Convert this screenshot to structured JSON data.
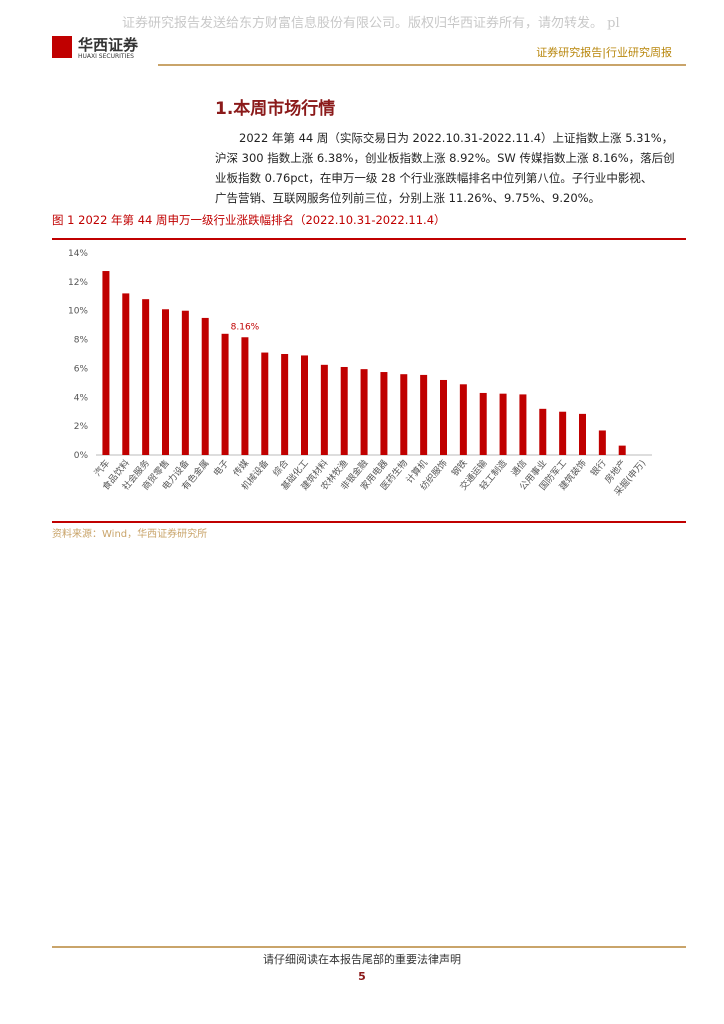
{
  "header": {
    "watermark": "证券研究报告发送给东方财富信息股份有限公司。版权归华西证券所有，请勿转发。 pl",
    "logo_name": "华西证券",
    "logo_en": "HUAXI SECURITIES",
    "report_type": "证券研究报告|行业研究周报"
  },
  "section": {
    "title": "1.本周市场行情",
    "paragraph": [
      "2022 年第 44 周（实际交易日为 2022.10.31-2022.11.4）上证指数上涨 5.31%，",
      "沪深 300 指数上涨 6.38%，创业板指数上涨 8.92%。SW 传媒指数上涨 8.16%，落后创",
      "业板指数 0.76pct，在申万一级 28 个行业涨跌幅排名中位列第八位。子行业中影视、",
      "广告营销、互联网服务位列前三位，分别上涨 11.26%、9.75%、9.20%。"
    ]
  },
  "figure": {
    "caption": "图 1  2022 年第 44 周申万一级行业涨跌幅排名（2022.10.31-2022.11.4）",
    "source": "资料来源：Wind，华西证券研究所"
  },
  "chart_data": {
    "type": "bar",
    "color": "#c00000",
    "categories": [
      "汽车",
      "食品饮料",
      "社会服务",
      "商贸零售",
      "电力设备",
      "有色金属",
      "电子",
      "传媒",
      "机械设备",
      "综合",
      "基础化工",
      "建筑材料",
      "农林牧渔",
      "非银金融",
      "家用电器",
      "医药生物",
      "计算机",
      "纺织服饰",
      "钢铁",
      "交通运输",
      "轻工制造",
      "通信",
      "公用事业",
      "国防军工",
      "建筑装饰",
      "银行",
      "房地产",
      "采掘(申万)"
    ],
    "values": [
      12.75,
      11.2,
      10.8,
      10.1,
      10.0,
      9.5,
      8.4,
      8.16,
      7.1,
      7.0,
      6.9,
      6.25,
      6.1,
      5.95,
      5.75,
      5.6,
      5.55,
      5.2,
      4.9,
      4.3,
      4.25,
      4.2,
      3.2,
      3.0,
      2.85,
      1.7,
      0.65,
      null
    ],
    "value_labels": [
      null,
      null,
      null,
      null,
      null,
      null,
      null,
      "8.16%",
      null,
      null,
      null,
      null,
      null,
      null,
      null,
      null,
      null,
      null,
      null,
      null,
      null,
      null,
      null,
      null,
      null,
      null,
      null,
      null
    ],
    "ylim": [
      0,
      14
    ],
    "yticks": [
      {
        "value": 0,
        "label": "0%"
      },
      {
        "value": 2,
        "label": "2%"
      },
      {
        "value": 4,
        "label": "4%"
      },
      {
        "value": 6,
        "label": "6%"
      },
      {
        "value": 8,
        "label": "8%"
      },
      {
        "value": 10,
        "label": "10%"
      },
      {
        "value": 12,
        "label": "12%"
      },
      {
        "value": 14,
        "label": "14%"
      }
    ],
    "grid": false
  },
  "footer": {
    "disclaimer": "请仔细阅读在本报告尾部的重要法律声明",
    "page": "5"
  }
}
